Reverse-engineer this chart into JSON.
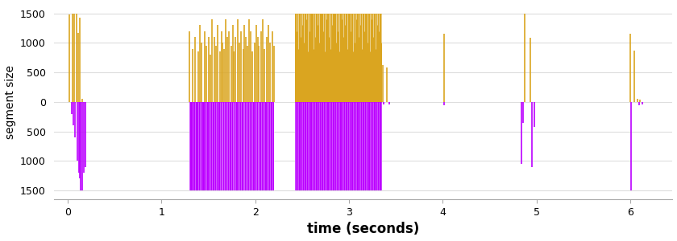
{
  "xlabel": "time (seconds)",
  "ylabel": "segment size",
  "xlim": [
    -0.15,
    6.45
  ],
  "ylim": [
    -1650,
    1650
  ],
  "yticks": [
    -1500,
    -1000,
    -500,
    0,
    500,
    1000,
    1500
  ],
  "xticks": [
    0,
    1,
    2,
    3,
    4,
    5,
    6
  ],
  "orange_color": "#DAA520",
  "purple_color": "#BB00FF",
  "background_color": "#FFFFFF",
  "grid_color": "#DDDDDD",
  "figsize": [
    8.4,
    3.0
  ],
  "dpi": 100,
  "burst1_orange": [
    {
      "t": 0.02,
      "v": 1480
    },
    {
      "t": 0.05,
      "v": 1490
    },
    {
      "t": 0.07,
      "v": 1500
    },
    {
      "t": 0.09,
      "v": 1500
    },
    {
      "t": 0.11,
      "v": 1170
    },
    {
      "t": 0.13,
      "v": 1430
    },
    {
      "t": 0.15,
      "v": 50
    }
  ],
  "burst1_purple": [
    {
      "t": 0.04,
      "v": -200
    },
    {
      "t": 0.06,
      "v": -400
    },
    {
      "t": 0.08,
      "v": -600
    },
    {
      "t": 0.1,
      "v": -1000
    },
    {
      "t": 0.12,
      "v": -1200
    },
    {
      "t": 0.13,
      "v": -1300
    },
    {
      "t": 0.14,
      "v": -1500
    },
    {
      "t": 0.15,
      "v": -1500
    },
    {
      "t": 0.17,
      "v": -1200
    },
    {
      "t": 0.19,
      "v": -1100
    }
  ],
  "burst2_orange_times": [
    1.3,
    1.33,
    1.36,
    1.39,
    1.41,
    1.43,
    1.46,
    1.48,
    1.5,
    1.52,
    1.54,
    1.56,
    1.58,
    1.6,
    1.62,
    1.64,
    1.65,
    1.67,
    1.68,
    1.7,
    1.72,
    1.74,
    1.76,
    1.77,
    1.79,
    1.81,
    1.83,
    1.85,
    1.87,
    1.88,
    1.9,
    1.92,
    1.93,
    1.95,
    1.97,
    1.99,
    2.01,
    2.03,
    2.04,
    2.06,
    2.08,
    2.1,
    2.12,
    2.14,
    2.16,
    2.18,
    2.2
  ],
  "burst2_orange_vals": [
    1200,
    900,
    1100,
    850,
    1300,
    1000,
    1200,
    950,
    1100,
    800,
    1400,
    1100,
    950,
    1300,
    850,
    1200,
    1000,
    900,
    1400,
    1100,
    1200,
    950,
    1300,
    850,
    1100,
    1400,
    1000,
    1200,
    900,
    1300,
    1100,
    950,
    1400,
    1200,
    850,
    1000,
    1300,
    1100,
    950,
    1200,
    1400,
    900,
    1100,
    1300,
    1000,
    1200,
    950
  ],
  "burst2_purple_times": [
    1.3,
    1.33,
    1.36,
    1.39,
    1.41,
    1.43,
    1.46,
    1.48,
    1.5,
    1.52,
    1.54,
    1.56,
    1.58,
    1.6,
    1.62,
    1.64,
    1.65,
    1.67,
    1.68,
    1.7,
    1.72,
    1.74,
    1.76,
    1.77,
    1.79,
    1.81,
    1.83,
    1.85,
    1.87,
    1.88,
    1.9,
    1.92,
    1.93,
    1.95,
    1.97,
    1.99,
    2.01,
    2.03,
    2.04,
    2.06,
    2.08,
    2.1,
    2.12,
    2.14,
    2.16,
    2.18,
    2.2
  ],
  "burst2_purple_vals": [
    -1500,
    -1500,
    -1500,
    -1500,
    -1500,
    -1500,
    -1500,
    -1500,
    -1500,
    -1500,
    -1500,
    -1500,
    -1500,
    -1500,
    -1500,
    -1500,
    -1500,
    -1500,
    -1500,
    -1500,
    -1500,
    -1500,
    -1500,
    -1500,
    -1500,
    -1500,
    -1500,
    -1500,
    -1500,
    -1500,
    -1500,
    -1500,
    -1500,
    -1500,
    -1500,
    -1500,
    -1500,
    -1500,
    -1500,
    -1500,
    -1500,
    -1500,
    -1500,
    -1500,
    -1500,
    -1500,
    -1500
  ],
  "burst3_t_start": 2.42,
  "burst3_t_end": 3.35,
  "burst3_orange_times": [
    2.42,
    2.44,
    2.46,
    2.48,
    2.5,
    2.52,
    2.54,
    2.56,
    2.58,
    2.6,
    2.62,
    2.64,
    2.66,
    2.68,
    2.7,
    2.72,
    2.74,
    2.76,
    2.78,
    2.8,
    2.82,
    2.84,
    2.86,
    2.88,
    2.9,
    2.92,
    2.94,
    2.96,
    2.98,
    3.0,
    3.02,
    3.04,
    3.06,
    3.08,
    3.1,
    3.12,
    3.14,
    3.16,
    3.18,
    3.2,
    3.22,
    3.24,
    3.26,
    3.28,
    3.3,
    3.32,
    3.34
  ],
  "burst3_orange_vals": [
    1500,
    1200,
    900,
    1100,
    1300,
    1000,
    1400,
    850,
    1200,
    1500,
    900,
    1100,
    1300,
    1000,
    1500,
    1200,
    850,
    1400,
    1100,
    900,
    1300,
    1500,
    1000,
    1200,
    850,
    1400,
    1100,
    1300,
    900,
    1500,
    1200,
    850,
    1000,
    1400,
    1100,
    1300,
    900,
    1200,
    1500,
    1000,
    850,
    1400,
    1100,
    900,
    1300,
    1200,
    1000
  ],
  "burst3_purple_vals": [
    -1500,
    -1500,
    -1500,
    -1500,
    -1500,
    -1500,
    -1500,
    -1500,
    -1500,
    -1500,
    -1500,
    -1500,
    -1500,
    -1500,
    -1500,
    -1500,
    -1500,
    -1500,
    -1500,
    -1500,
    -1500,
    -1500,
    -1500,
    -1500,
    -1500,
    -1500,
    -1500,
    -1500,
    -1500,
    -1500,
    -1500,
    -1500,
    -1500,
    -1500,
    -1500,
    -1500,
    -1500,
    -1500,
    -1500,
    -1500,
    -1500,
    -1500,
    -1500,
    -1500,
    -1500,
    -1500,
    -1500
  ],
  "sparse_orange": [
    {
      "t": 3.36,
      "v": 620
    },
    {
      "t": 3.4,
      "v": 580
    },
    {
      "t": 4.01,
      "v": 1150
    },
    {
      "t": 4.87,
      "v": 1500
    },
    {
      "t": 4.93,
      "v": 1090
    },
    {
      "t": 6.0,
      "v": 1150
    },
    {
      "t": 6.04,
      "v": 870
    },
    {
      "t": 6.08,
      "v": 55
    },
    {
      "t": 6.1,
      "v": 40
    }
  ],
  "sparse_purple": [
    {
      "t": 3.37,
      "v": -45
    },
    {
      "t": 3.43,
      "v": -45
    },
    {
      "t": 4.01,
      "v": -55
    },
    {
      "t": 4.84,
      "v": -1050
    },
    {
      "t": 4.86,
      "v": -350
    },
    {
      "t": 4.95,
      "v": -1100
    },
    {
      "t": 4.98,
      "v": -420
    },
    {
      "t": 6.01,
      "v": -1500
    },
    {
      "t": 6.09,
      "v": -55
    },
    {
      "t": 6.13,
      "v": -45
    }
  ],
  "lw_burst": 1.2,
  "lw_sparse": 1.2
}
